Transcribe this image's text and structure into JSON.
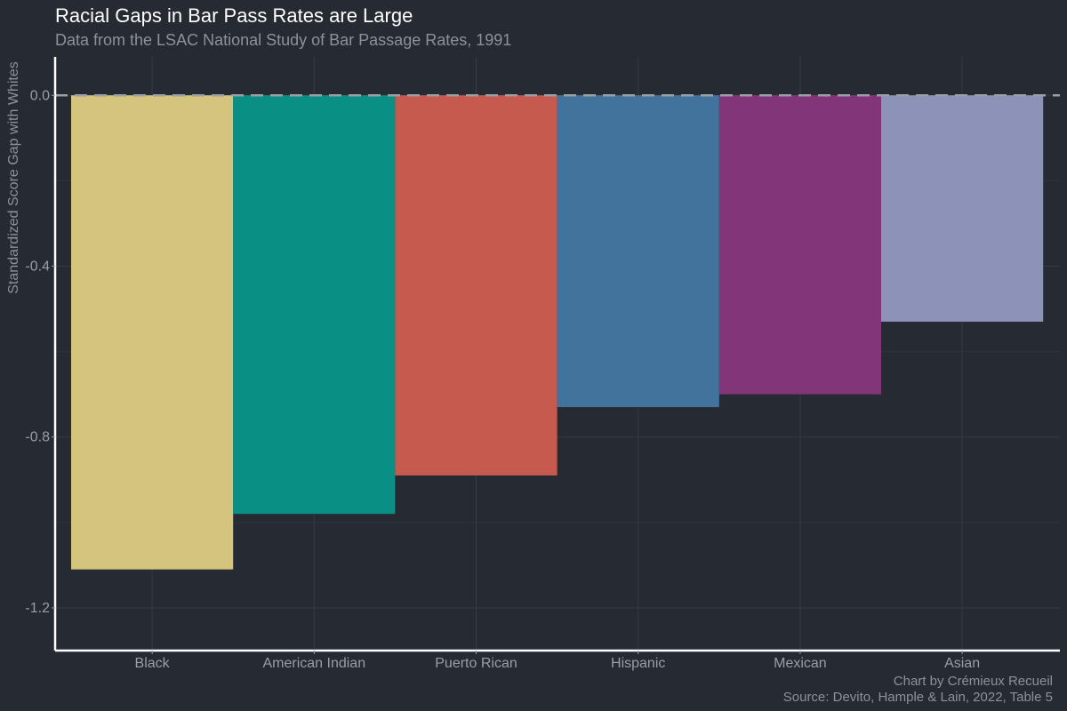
{
  "chart_data": {
    "type": "bar",
    "title": "Racial Gaps in Bar Pass Rates are Large",
    "subtitle": "Data from the LSAC National Study of Bar Passage Rates, 1991",
    "ylabel": "Standardized Score Gap with Whites",
    "xlabel": "",
    "categories": [
      "Black",
      "American Indian",
      "Puerto Rican",
      "Hispanic",
      "Mexican",
      "Asian"
    ],
    "values": [
      -1.11,
      -0.98,
      -0.89,
      -0.73,
      -0.7,
      -0.53
    ],
    "colors": [
      "#d4c47e",
      "#0a8f85",
      "#c65a4e",
      "#41739c",
      "#833579",
      "#8c92b8"
    ],
    "ylim": [
      -1.3,
      0.09
    ],
    "yticks": [
      0.0,
      -0.4,
      -0.8,
      -1.2
    ],
    "ytick_labels": [
      "0.0",
      "-0.4",
      "-0.8",
      "-1.2"
    ],
    "reference_line": 0.0,
    "grid": true,
    "legend": "none",
    "caption_lines": [
      "Chart by Crémieux Recueil",
      "Source: Devito, Hample & Lain, 2022, Table 5"
    ]
  }
}
